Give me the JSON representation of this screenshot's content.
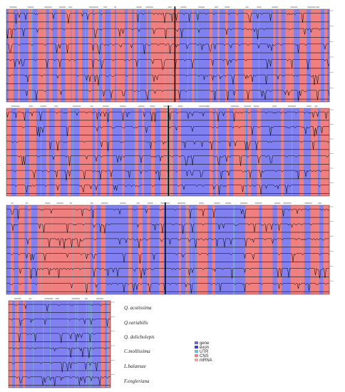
{
  "figure": {
    "type": "mVISTA-style genome alignment",
    "colors": {
      "conserved": "#f08080",
      "coding": "#8080f0",
      "utr": "#80c0d0",
      "trace": "#000000"
    },
    "species": [
      "Q. acutissima",
      "Q.variabilis",
      "Q. dolicholepis",
      "C.mollissima",
      "L.balansae",
      "F.engleriana"
    ],
    "annotation_key": [
      "gene",
      "exon",
      "UTR",
      "CNS",
      "mRNA"
    ]
  },
  "panels": [
    {
      "id": "panel-1",
      "segments": [
        [
          "B",
          3
        ],
        [
          "P",
          7
        ],
        [
          "B",
          6
        ],
        [
          "P",
          3
        ],
        [
          "B",
          12
        ],
        [
          "P",
          4
        ],
        [
          "B",
          9
        ],
        [
          "P",
          12
        ],
        [
          "B",
          4
        ],
        [
          "P",
          5
        ],
        [
          "B",
          7
        ],
        [
          "P",
          5
        ],
        [
          "B",
          6
        ],
        [
          "P",
          8
        ],
        [
          "B",
          1
        ],
        [
          "P",
          5
        ],
        [
          "B",
          4
        ],
        [
          "P",
          6
        ],
        [
          "B",
          8
        ],
        [
          "P",
          6
        ],
        [
          "B",
          3
        ],
        [
          "P",
          6
        ],
        [
          "B",
          5
        ],
        [
          "P",
          4
        ],
        [
          "B",
          8
        ],
        [
          "P",
          6
        ],
        [
          "B",
          2
        ],
        [
          "P",
          12
        ],
        [
          "B",
          4
        ],
        [
          "P",
          6
        ],
        [
          "B",
          3
        ],
        [
          "P",
          4
        ],
        [
          "B",
          14
        ],
        [
          "P",
          2
        ],
        [
          "B",
          4
        ],
        [
          "P",
          40
        ],
        [
          "B",
          18
        ],
        [
          "P",
          3
        ],
        [
          "B",
          22
        ],
        [
          "P",
          4
        ],
        [
          "B",
          7
        ],
        [
          "P",
          3
        ],
        [
          "B",
          8
        ],
        [
          "P",
          4
        ],
        [
          "B",
          10
        ],
        [
          "P",
          4
        ],
        [
          "B",
          8
        ],
        [
          "P",
          12
        ],
        [
          "B",
          30
        ],
        [
          "P",
          3
        ],
        [
          "B",
          4
        ],
        [
          "P",
          4
        ],
        [
          "B",
          6
        ],
        [
          "P",
          12
        ],
        [
          "B",
          8
        ],
        [
          "P",
          10
        ],
        [
          "B",
          6
        ],
        [
          "P",
          14
        ],
        [
          "B",
          5
        ],
        [
          "P",
          4
        ],
        [
          "B",
          3
        ]
      ],
      "divider_frac": 0.52
    },
    {
      "id": "panel-2",
      "segments": [
        [
          "P",
          6
        ],
        [
          "B",
          8
        ],
        [
          "P",
          12
        ],
        [
          "B",
          6
        ],
        [
          "P",
          10
        ],
        [
          "B",
          14
        ],
        [
          "P",
          4
        ],
        [
          "B",
          8
        ],
        [
          "P",
          8
        ],
        [
          "B",
          10
        ],
        [
          "P",
          5
        ],
        [
          "B",
          12
        ],
        [
          "P",
          18
        ],
        [
          "B",
          4
        ],
        [
          "P",
          3
        ],
        [
          "B",
          5
        ],
        [
          "P",
          8
        ],
        [
          "B",
          4
        ],
        [
          "P",
          4
        ],
        [
          "B",
          14
        ],
        [
          "P",
          3
        ],
        [
          "B",
          16
        ],
        [
          "P",
          4
        ],
        [
          "B",
          5
        ],
        [
          "P",
          3
        ],
        [
          "B",
          10
        ],
        [
          "P",
          5
        ],
        [
          "B",
          8
        ],
        [
          "P",
          18
        ],
        [
          "B",
          6
        ],
        [
          "P",
          5
        ],
        [
          "B",
          40
        ],
        [
          "P",
          5
        ],
        [
          "B",
          4
        ],
        [
          "P",
          3
        ],
        [
          "B",
          12
        ],
        [
          "P",
          4
        ],
        [
          "B",
          6
        ],
        [
          "P",
          16
        ],
        [
          "B",
          4
        ],
        [
          "P",
          5
        ],
        [
          "B",
          8
        ],
        [
          "P",
          6
        ],
        [
          "B",
          28
        ],
        [
          "P",
          4
        ],
        [
          "B",
          22
        ],
        [
          "P",
          6
        ],
        [
          "B",
          10
        ],
        [
          "P",
          10
        ],
        [
          "B",
          4
        ],
        [
          "P",
          12
        ]
      ],
      "divider_frac": 0.5
    },
    {
      "id": "panel-3",
      "segments": [
        [
          "B",
          6
        ],
        [
          "P",
          4
        ],
        [
          "B",
          6
        ],
        [
          "P",
          8
        ],
        [
          "B",
          4
        ],
        [
          "P",
          5
        ],
        [
          "B",
          8
        ],
        [
          "P",
          70
        ],
        [
          "B",
          4
        ],
        [
          "P",
          4
        ],
        [
          "B",
          6
        ],
        [
          "P",
          6
        ],
        [
          "B",
          30
        ],
        [
          "P",
          5
        ],
        [
          "B",
          8
        ],
        [
          "P",
          6
        ],
        [
          "B",
          6
        ],
        [
          "P",
          4
        ],
        [
          "B",
          12
        ],
        [
          "P",
          6
        ],
        [
          "B",
          20
        ],
        [
          "P",
          3
        ],
        [
          "B",
          6
        ],
        [
          "P",
          5
        ],
        [
          "B",
          10
        ],
        [
          "P",
          14
        ],
        [
          "B",
          6
        ],
        [
          "P",
          4
        ],
        [
          "B",
          40
        ],
        [
          "P",
          18
        ],
        [
          "B",
          4
        ],
        [
          "P",
          14
        ],
        [
          "B",
          6
        ],
        [
          "P",
          6
        ],
        [
          "B",
          12
        ],
        [
          "P",
          18
        ],
        [
          "B",
          8
        ],
        [
          "P",
          12
        ],
        [
          "B",
          5
        ],
        [
          "P",
          8
        ]
      ],
      "divider_frac": 0.49
    },
    {
      "id": "panel-4",
      "segments": [
        [
          "P",
          4
        ],
        [
          "B",
          4
        ],
        [
          "P",
          5
        ],
        [
          "B",
          5
        ],
        [
          "P",
          3
        ],
        [
          "B",
          95
        ],
        [
          "P",
          5
        ],
        [
          "B",
          4
        ],
        [
          "P",
          3
        ]
      ],
      "divider_frac": null
    }
  ]
}
